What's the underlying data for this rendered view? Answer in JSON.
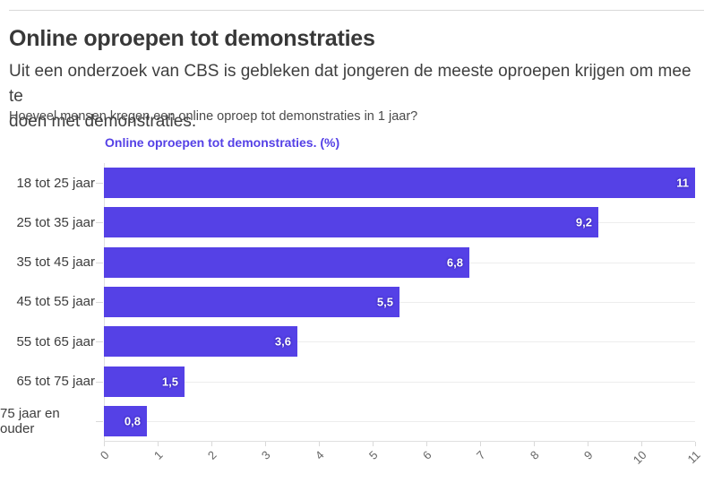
{
  "header": {
    "title": "Online oproepen tot demonstraties",
    "subtitle": "Uit een onderzoek van CBS is gebleken dat jongeren de meeste oproepen krijgen om mee te\ndoen met demonstraties.",
    "question": "Hoeveel mensen kregen een online oproep tot demonstraties in 1 jaar?"
  },
  "colors": {
    "accent": "#5541e6",
    "bar": "#5541e6",
    "legend_text": "#5541e6",
    "grid": "#ededed",
    "axis": "#e0e0e0",
    "tick_text": "#666666",
    "category_text": "#3d3d3d",
    "divider": "#d9d9d9",
    "value_label_text": "#ffffff"
  },
  "chart_data": {
    "type": "bar",
    "orientation": "horizontal",
    "title": "Online oproepen tot demonstraties. (%)",
    "legend": "Online oproepen tot demonstraties. (%)",
    "legend_position": "top-left",
    "categories": [
      "18 tot 25 jaar",
      "25 tot 35 jaar",
      "35 tot 45 jaar",
      "45 tot 55 jaar",
      "55 tot 65 jaar",
      "65 tot 75 jaar",
      "75 jaar en ouder"
    ],
    "values": [
      11,
      9.2,
      6.8,
      5.5,
      3.6,
      1.5,
      0.8
    ],
    "value_labels": [
      "11",
      "9,2",
      "6,8",
      "5,5",
      "3,6",
      "1,5",
      "0,8"
    ],
    "xlabel": "",
    "ylabel": "",
    "xlim": [
      0,
      11
    ],
    "x_ticks": [
      "0",
      "1",
      "2",
      "3",
      "4",
      "5",
      "6",
      "7",
      "8",
      "9",
      "10",
      "11"
    ],
    "x_tick_rotation": -45,
    "grid": true
  }
}
